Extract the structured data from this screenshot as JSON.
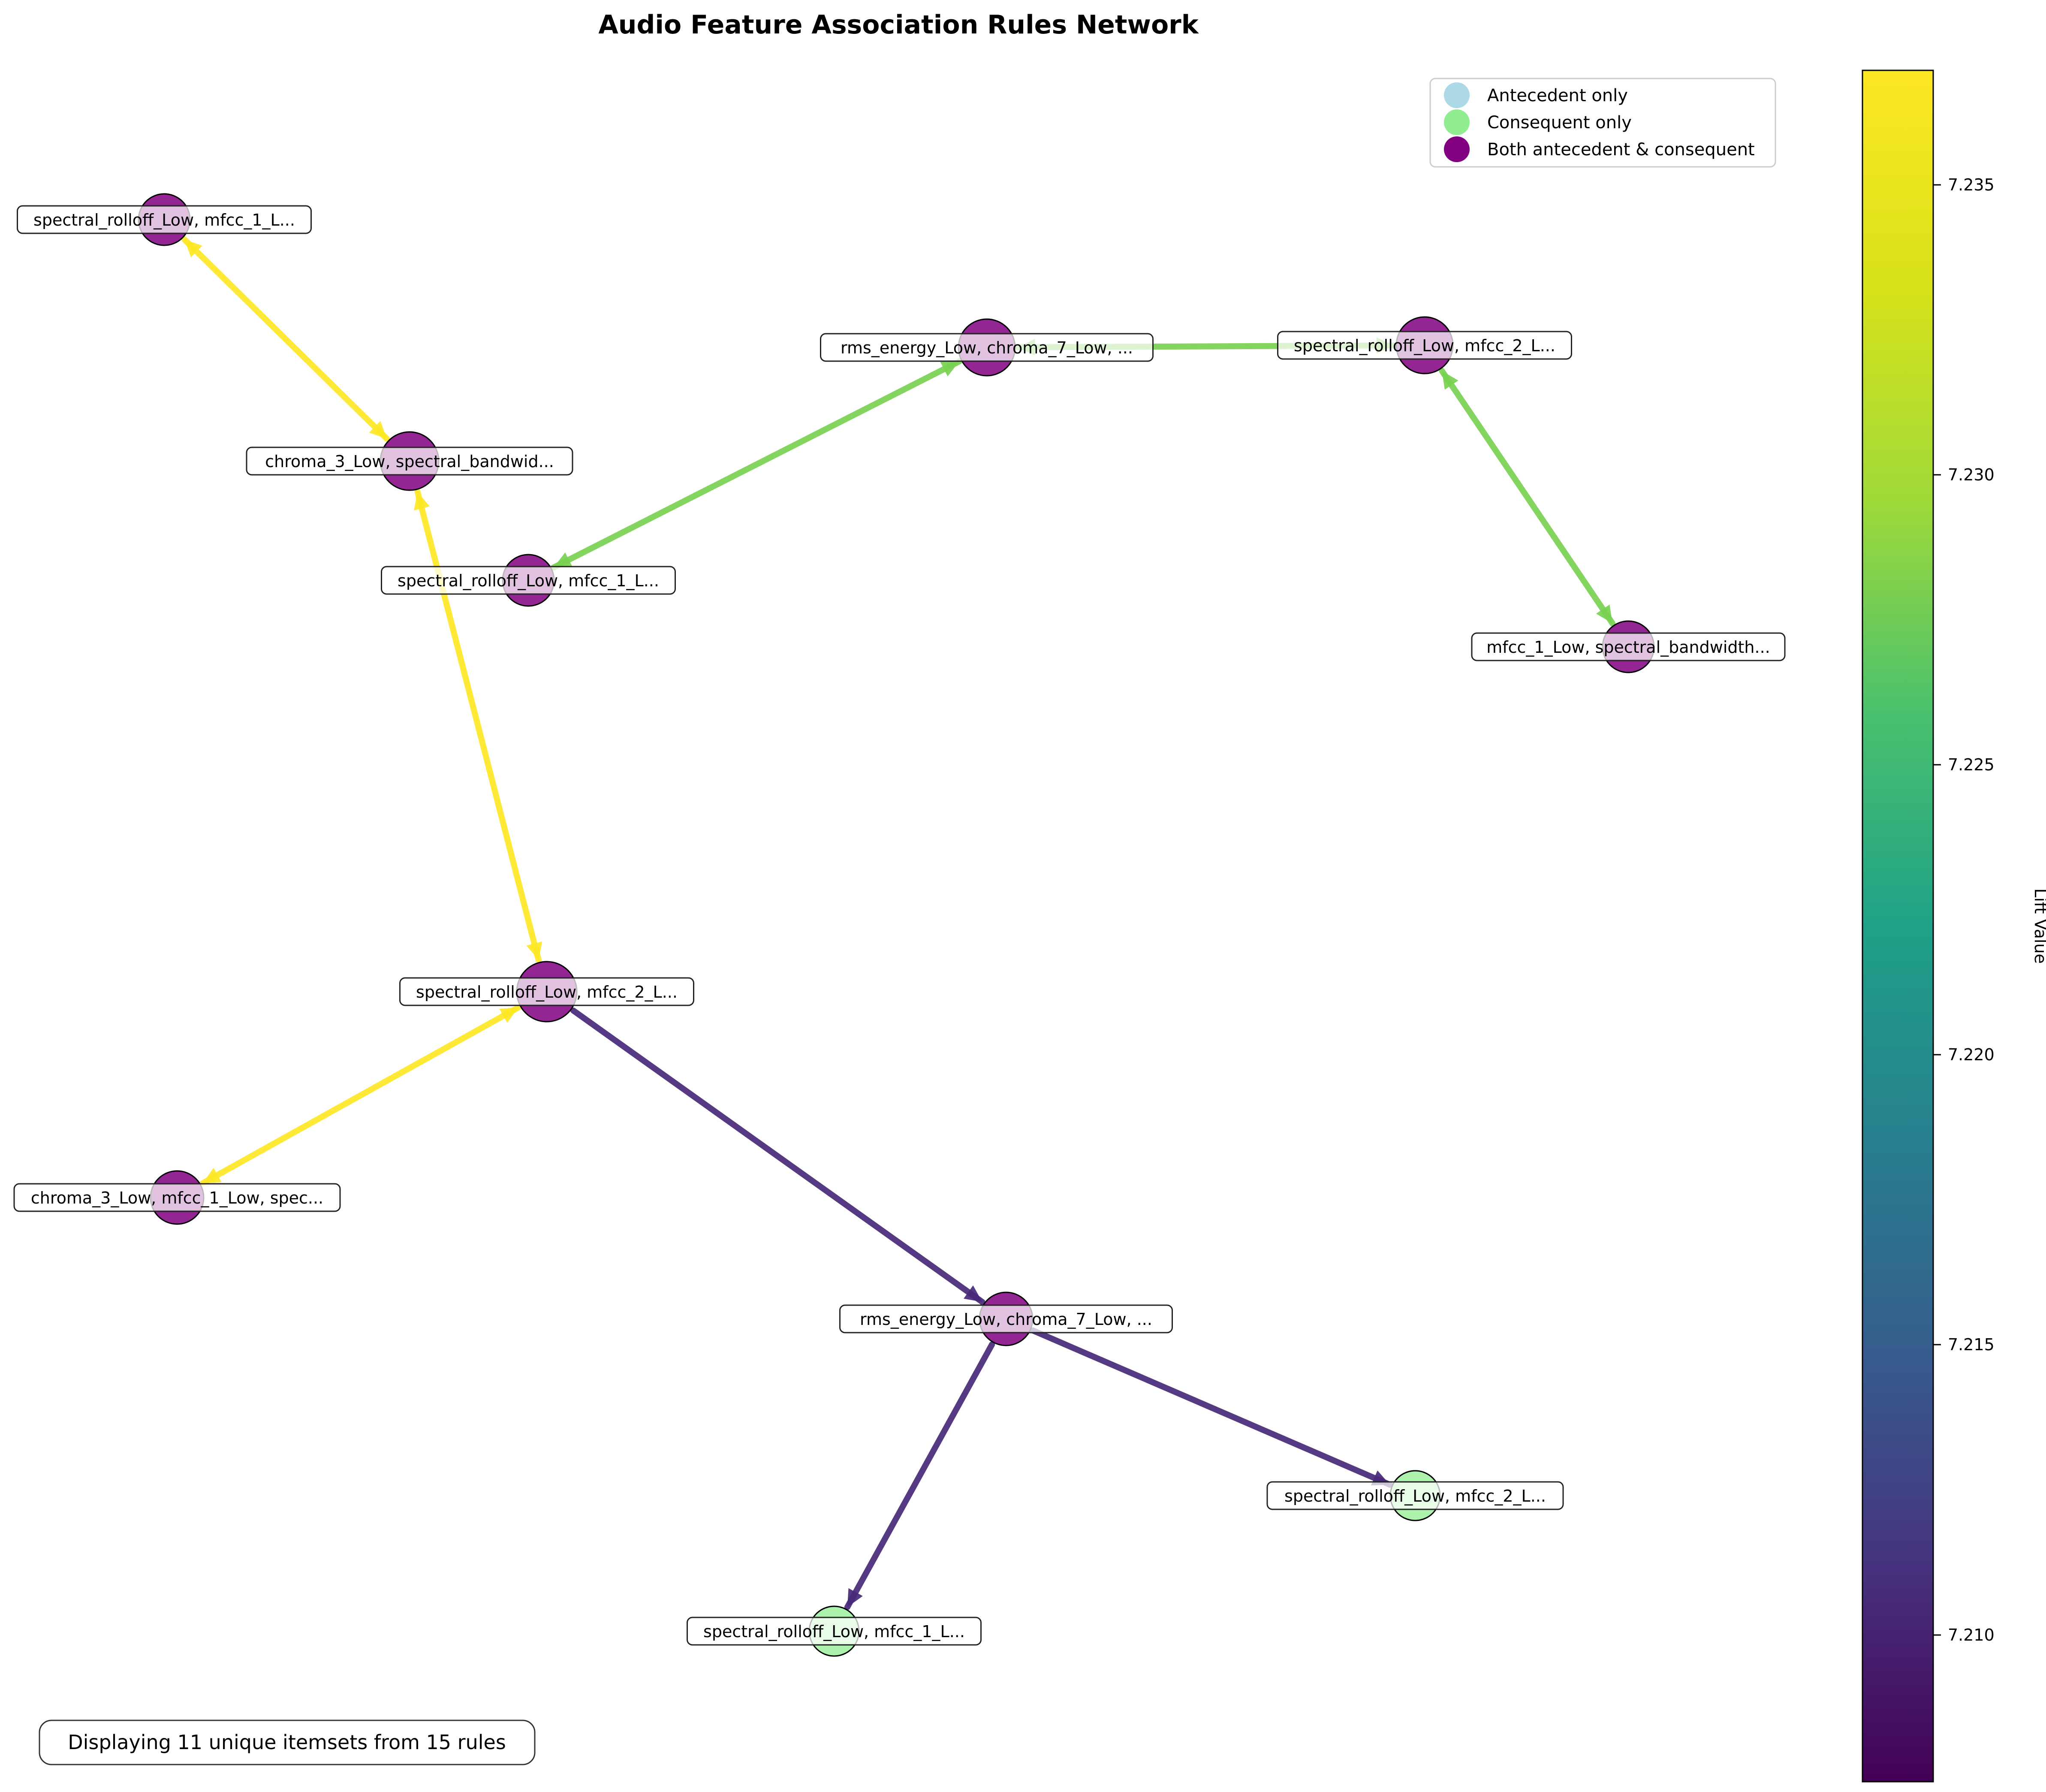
{
  "title": "Audio Feature Association Rules Network",
  "colors": {
    "antecedent_only": "#add8e6",
    "consequent_only": "#90ee90",
    "both": "#800080",
    "lift_high": "#fde725",
    "lift_mid": "#7ad151",
    "lift_low": "#482878"
  },
  "legend": [
    {
      "label": "Antecedent only",
      "color": "#add8e6"
    },
    {
      "label": "Consequent only",
      "color": "#90ee90"
    },
    {
      "label": "Both antecedent & consequent",
      "color": "#800080"
    }
  ],
  "nodes": [
    {
      "id": "n1",
      "label": "spectral_rolloff_Low, mfcc_1_L...",
      "role": "both"
    },
    {
      "id": "n2",
      "label": "chroma_3_Low, spectral_bandwid...",
      "role": "both"
    },
    {
      "id": "n3",
      "label": "rms_energy_Low, chroma_7_Low, ...",
      "role": "both"
    },
    {
      "id": "n4",
      "label": "spectral_rolloff_Low, mfcc_2_L...",
      "role": "both"
    },
    {
      "id": "n5",
      "label": "spectral_rolloff_Low, mfcc_1_L...",
      "role": "both"
    },
    {
      "id": "n6",
      "label": "mfcc_1_Low, spectral_bandwidth...",
      "role": "both"
    },
    {
      "id": "n7",
      "label": "spectral_rolloff_Low, mfcc_2_L...",
      "role": "both"
    },
    {
      "id": "n8",
      "label": "chroma_3_Low, mfcc_1_Low, spec...",
      "role": "both"
    },
    {
      "id": "n9",
      "label": "rms_energy_Low, chroma_7_Low, ...",
      "role": "both"
    },
    {
      "id": "n10",
      "label": "spectral_rolloff_Low, mfcc_2_L...",
      "role": "consequent"
    },
    {
      "id": "n11",
      "label": "spectral_rolloff_Low, mfcc_1_L...",
      "role": "consequent"
    }
  ],
  "edges": [
    {
      "from": "n1",
      "to": "n2",
      "bidirectional": true,
      "color": "#fde725"
    },
    {
      "from": "n2",
      "to": "n7",
      "bidirectional": true,
      "color": "#fde725"
    },
    {
      "from": "n7",
      "to": "n8",
      "bidirectional": true,
      "color": "#fde725"
    },
    {
      "from": "n3",
      "to": "n5",
      "bidirectional": true,
      "color": "#7ad151"
    },
    {
      "from": "n3",
      "to": "n4",
      "bidirectional": true,
      "color": "#7ad151"
    },
    {
      "from": "n4",
      "to": "n6",
      "bidirectional": true,
      "color": "#7ad151"
    },
    {
      "from": "n7",
      "to": "n9",
      "bidirectional": false,
      "color": "#482878"
    },
    {
      "from": "n9",
      "to": "n10",
      "bidirectional": false,
      "color": "#482878"
    },
    {
      "from": "n9",
      "to": "n11",
      "bidirectional": false,
      "color": "#482878"
    }
  ],
  "colorbar": {
    "label": "Lift Value",
    "ticks": [
      "7.210",
      "7.215",
      "7.220",
      "7.225",
      "7.230",
      "7.235"
    ]
  },
  "footer_note": "Displaying 11 unique itemsets from 15 rules"
}
